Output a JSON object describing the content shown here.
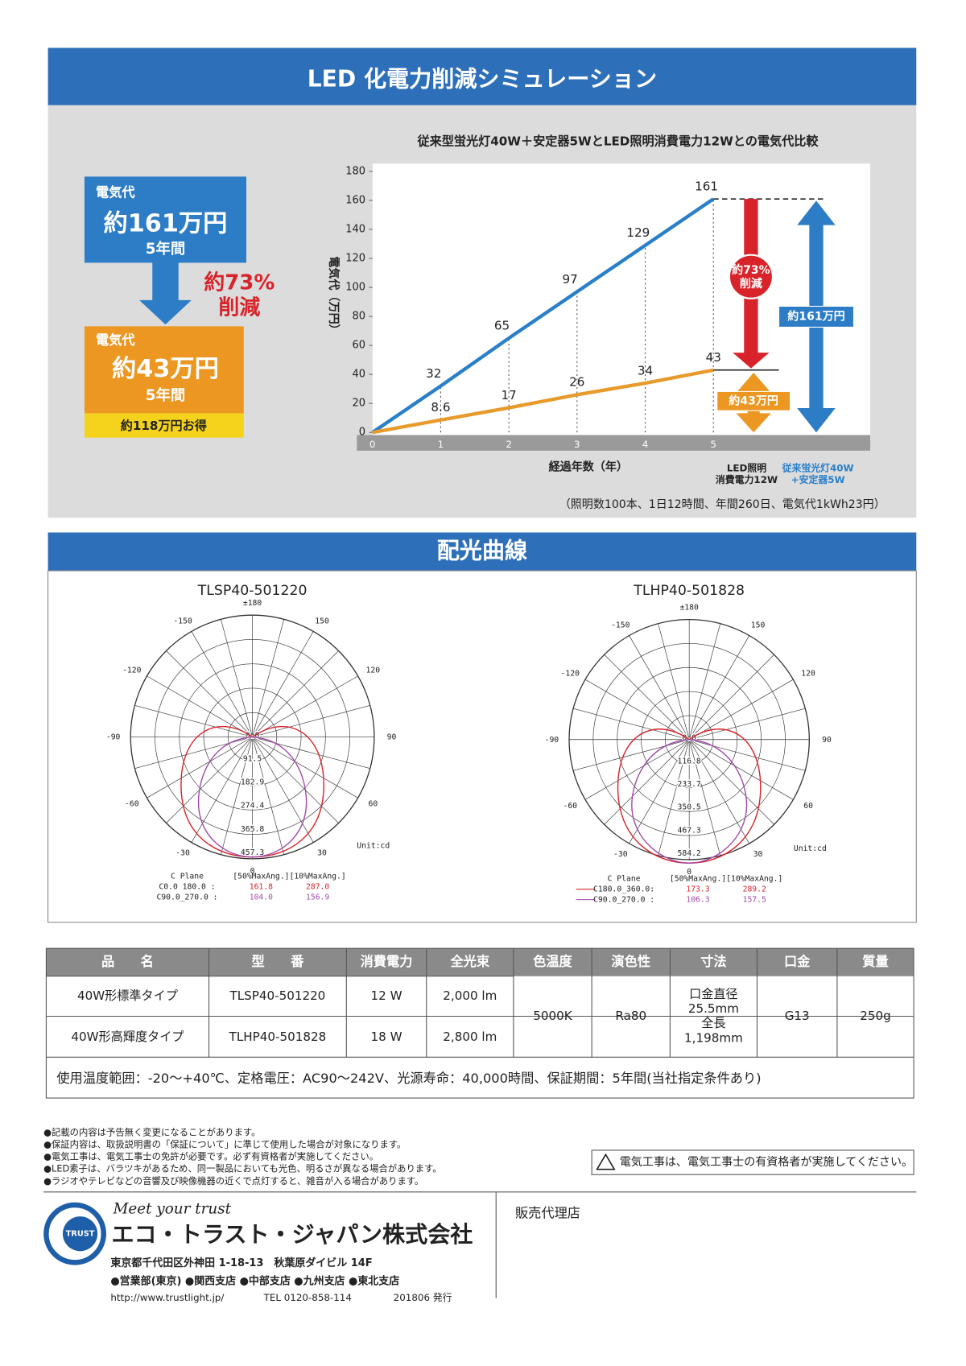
{
  "simulation": {
    "title": "LED 化電力削減シミュレーション",
    "before": {
      "label": "電気代",
      "amount": "約161万円",
      "period": "5年間"
    },
    "reduction": "約73%\n削減",
    "after": {
      "label": "電気代",
      "amount": "約43万円",
      "period": "5年間",
      "saving": "約118万円お得"
    },
    "note": "（照明数100本、1日12時間、年間260日、電気代1kWh23円）"
  },
  "chart_data": {
    "type": "line",
    "title": "従来型蛍光灯40W＋安定器5WとLED照明消費電力12Wとの電気代比較",
    "x": [
      0,
      1,
      2,
      3,
      4,
      5
    ],
    "xlabel": "経過年数（年）",
    "ylabel": "電気代（万円）",
    "xlim": [
      0,
      7.3
    ],
    "xticks": [
      0,
      1,
      2,
      3,
      4,
      5
    ],
    "ylim": [
      0,
      180
    ],
    "yticks": [
      0,
      20,
      40,
      60,
      80,
      100,
      120,
      140,
      160,
      180
    ],
    "series": [
      {
        "name": "従来蛍光灯40W\n+安定器5W",
        "color": "#2a7fc9",
        "values": [
          0,
          32,
          65,
          97,
          129,
          161
        ]
      },
      {
        "name": "LED照明\n消費電力12W",
        "color": "#e89a2a",
        "values": [
          0,
          8.6,
          17,
          26,
          34,
          43
        ]
      }
    ],
    "annotations": {
      "reduction": "約73%\n削減",
      "before_total": "約161万円",
      "after_total": "約43万円"
    }
  },
  "light_distribution": {
    "title": "配光曲線",
    "plots": [
      {
        "model": "TLSP40-501220",
        "angles": [
          {
            "value": 180,
            "label": "±180"
          },
          -150,
          150,
          -120,
          120,
          -90,
          90,
          -60,
          60,
          -30,
          30,
          0
        ],
        "radial_labels": [
          "0.0",
          "91.5",
          "182.9",
          "274.4",
          "365.8",
          "457.3"
        ],
        "unit": "Unit:cd",
        "legend_header": [
          "C Plane",
          "[50%MaxAng.]",
          "[10%MaxAng.]"
        ],
        "rows": [
          [
            "C0.0 180.0 :",
            "161.8",
            "287.0"
          ],
          [
            "C90.0_270.0 :",
            "104.0",
            "156.9"
          ]
        ]
      },
      {
        "model": "TLHP40-501828",
        "angles": [
          {
            "value": 180,
            "label": "±180"
          },
          -150,
          150,
          -120,
          120,
          -90,
          90,
          -60,
          60,
          -30,
          30,
          0
        ],
        "radial_labels": [
          "0.0",
          "116.8",
          "233.7",
          "350.5",
          "467.3",
          "584.2"
        ],
        "unit": "Unit:cd",
        "legend_header": [
          "C Plane",
          "[50%MaxAng.]",
          "[10%MaxAng.]"
        ],
        "rows": [
          [
            "C180.0_360.0:",
            "173.3",
            "289.2"
          ],
          [
            "C90.0_270.0 :",
            "106.3",
            "157.5"
          ]
        ]
      }
    ]
  },
  "table": {
    "header": [
      "品　　名",
      "型　　番",
      "消費電力",
      "全光束",
      "色温度",
      "演色性",
      "寸法",
      "口金",
      "質量"
    ],
    "rows": [
      [
        "40W形標準タイプ",
        "TLSP40-501220",
        "12 W",
        "2,000 lm"
      ],
      [
        "40W形高輝度タイプ",
        "TLHP40-501828",
        "18 W",
        "2,800 lm"
      ]
    ],
    "shared": {
      "color_temp": "5000K",
      "cri": "Ra80",
      "dimensions": "口金直径\n25.5mm\n全長\n1,198mm",
      "base": "G13",
      "mass": "250g"
    },
    "footer": "使用温度範囲：-20～+40℃、定格電圧：AC90～242V、光源寿命：40,000時間、保証期間：5年間(当社指定条件あり)"
  },
  "notes": [
    "●記載の内容は予告無く変更になることがあります。",
    "●保証内容は、取扱説明書の「保証について」に準じて使用した場合が対象になります。",
    "●電気工事は、電気工事士の免許が必要です。必ず有資格者が実施してください。",
    "●LED素子は、バラツキがあるため、同一製品においても光色、明るさが異なる場合があります。",
    "●ラジオやテレビなどの音響及び映像機器の近くで点灯すると、雑音が入る場合があります。"
  ],
  "warning": "電気工事は、電気工事士の有資格者が実施してください。",
  "company": {
    "logo": "TRUST",
    "slogan": "Meet your trust",
    "name": "エコ・トラスト・ジャパン株式会社",
    "address": "東京都千代田区外神田 1-18-13　秋葉原ダイビル 14F",
    "branches": "●営業部(東京) ●関西支店 ●中部支店 ●九州支店 ●東北支店",
    "url": "http://www.trustlight.jp/",
    "tel": "TEL 0120-858-114",
    "issue": "201806 発行"
  },
  "dealer": "販売代理店"
}
